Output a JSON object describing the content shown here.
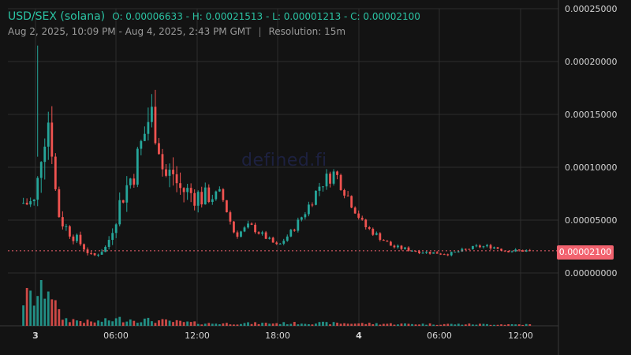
{
  "header": {
    "pair": "USD/SEX (solana)",
    "ohlc": "O: 0.00006633 - H: 0.00021513 - L: 0.00001213 - C: 0.00002100",
    "range": "Aug 2, 2025, 10:09 PM - Aug 4, 2025, 2:43 PM GMT",
    "separator": "|",
    "resolution": "Resolution: 15m"
  },
  "watermark": "defined.fi",
  "last_price_label": "0.00002100",
  "colors": {
    "background": "#131313",
    "up": "#26a69a",
    "down": "#ef5350",
    "grid": "#2e2e2e",
    "text": "#d6d6d6",
    "accent": "#2bc4a4",
    "price_line": "#f2636f"
  },
  "chart_data": {
    "type": "candlestick",
    "resolution": "15m",
    "grid": true,
    "ylim": [
      -5e-05,
      0.00025
    ],
    "y_ticks": [
      "0.00000000",
      "0.00005000",
      "0.00010000",
      "0.00015000",
      "0.00020000",
      "0.00025000"
    ],
    "x_ticks": [
      "3",
      "06:00",
      "12:00",
      "18:00",
      "4",
      "06:00",
      "12:00"
    ],
    "bold_x_ticks": [
      "3",
      "4"
    ],
    "last_price": 2.1e-05,
    "ohlc": {
      "open": 6.633e-05,
      "high": 0.00021513,
      "low": 1.213e-05,
      "close": 2.1e-05
    },
    "price_path_approx": [
      [
        0,
        6.6e-05
      ],
      [
        0.5,
        0.00013
      ],
      [
        1,
        0.00015
      ],
      [
        1.5,
        6e-05
      ],
      [
        2,
        4.5e-05
      ],
      [
        3,
        3e-05
      ],
      [
        4,
        1.5e-05
      ],
      [
        5,
        2.5e-05
      ],
      [
        6,
        7e-05
      ],
      [
        7,
        0.0001
      ],
      [
        8,
        0.00015
      ],
      [
        8.5,
        0.00014
      ],
      [
        9,
        9e-05
      ],
      [
        9.7,
        9.5e-05
      ],
      [
        10,
        8e-05
      ],
      [
        11,
        7.5e-05
      ],
      [
        12,
        7e-05
      ],
      [
        13,
        7.5e-05
      ],
      [
        14,
        3.5e-05
      ],
      [
        15,
        4.5e-05
      ],
      [
        16,
        3.5e-05
      ],
      [
        17,
        2.5e-05
      ],
      [
        18,
        4e-05
      ],
      [
        19,
        6e-05
      ],
      [
        20,
        8.5e-05
      ],
      [
        21,
        9.5e-05
      ],
      [
        22,
        7e-05
      ],
      [
        23,
        4.5e-05
      ],
      [
        24,
        3.5e-05
      ],
      [
        25,
        2.5e-05
      ],
      [
        27,
        2e-05
      ],
      [
        29,
        1.8e-05
      ],
      [
        31,
        2.5e-05
      ],
      [
        32,
        2.5e-05
      ],
      [
        33,
        2.1e-05
      ],
      [
        34.8,
        2.1e-05
      ]
    ],
    "volume_profile_approx": [
      [
        0,
        0.6
      ],
      [
        1,
        1.0
      ],
      [
        1.5,
        0.3
      ],
      [
        2,
        0.15
      ],
      [
        4,
        0.08
      ],
      [
        6,
        0.15
      ],
      [
        8,
        0.12
      ],
      [
        12,
        0.05
      ],
      [
        20,
        0.06
      ],
      [
        23,
        0.05
      ],
      [
        26,
        0.04
      ],
      [
        34.8,
        0.03
      ]
    ]
  }
}
